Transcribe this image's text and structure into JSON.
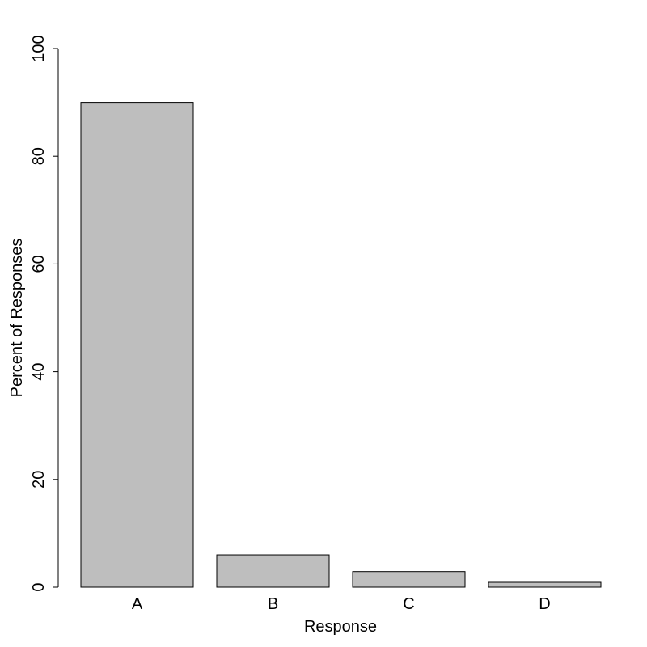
{
  "chart_data": {
    "type": "bar",
    "x_label": "Response",
    "y_label": "Percent of Responses",
    "categories": [
      "A",
      "B",
      "C",
      "D"
    ],
    "values": [
      90,
      6,
      2.9,
      0.9
    ],
    "color": "#bebebe",
    "ylim": [
      0,
      100
    ],
    "yticks": [
      0,
      20,
      40,
      60,
      80,
      100
    ]
  }
}
